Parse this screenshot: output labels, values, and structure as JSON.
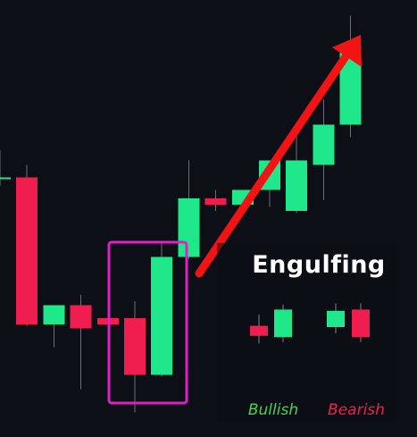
{
  "colors": {
    "background": "#0c0f16",
    "bull": "#1ee88a",
    "bear": "#f01e4e",
    "wick": "#6b6f78",
    "highlight": "#e01fc8",
    "arrow": "#f21414"
  },
  "legend": {
    "title": "Engulfing",
    "bullish_label": "Bullish",
    "bearish_label": "Bearish",
    "bullish_color": "#3fd84a",
    "bearish_color": "#f01e4e"
  },
  "chart_data": {
    "type": "candlestick",
    "title": "",
    "xlabel": "",
    "ylabel": "",
    "ylim": [
      0,
      100
    ],
    "grid": false,
    "highlighted_pattern": "bullish engulfing",
    "highlighted_candles": [
      5,
      6
    ],
    "trend_arrow": "up",
    "candles": [
      {
        "open": 59.5,
        "high": 66.0,
        "low": 57.5,
        "close": 59.5
      },
      {
        "open": 59.5,
        "high": 62.5,
        "low": 24.0,
        "close": 24.5
      },
      {
        "open": 24.5,
        "high": 28.0,
        "low": 19.0,
        "close": 29.0
      },
      {
        "open": 29.0,
        "high": 31.5,
        "low": 9.0,
        "close": 23.5
      },
      {
        "open": 26.0,
        "high": 27.5,
        "low": 14.0,
        "close": 24.5
      },
      {
        "open": 26.0,
        "high": 30.0,
        "low": 3.5,
        "close": 12.5
      },
      {
        "open": 12.5,
        "high": 44.0,
        "low": 12.0,
        "close": 40.5
      },
      {
        "open": 40.5,
        "high": 63.5,
        "low": 40.0,
        "close": 54.5
      },
      {
        "open": 54.5,
        "high": 56.5,
        "low": 51.5,
        "close": 53.0
      },
      {
        "open": 53.0,
        "high": 55.5,
        "low": 53.0,
        "close": 56.5
      },
      {
        "open": 56.5,
        "high": 63.0,
        "low": 52.5,
        "close": 63.5
      },
      {
        "open": 51.5,
        "high": 70.0,
        "low": 51.0,
        "close": 63.5
      },
      {
        "open": 62.5,
        "high": 78.0,
        "low": 54.0,
        "close": 72.0
      },
      {
        "open": 72.0,
        "high": 98.0,
        "low": 69.0,
        "close": 91.0
      }
    ],
    "legend_candles": {
      "bullish": [
        {
          "open": 61,
          "high": 70,
          "low": 47,
          "close": 53
        },
        {
          "open": 52,
          "high": 78,
          "low": 48,
          "close": 74
        }
      ],
      "bearish": [
        {
          "open": 60,
          "high": 79,
          "low": 55,
          "close": 73
        },
        {
          "open": 74,
          "high": 79,
          "low": 48,
          "close": 52
        }
      ]
    }
  }
}
